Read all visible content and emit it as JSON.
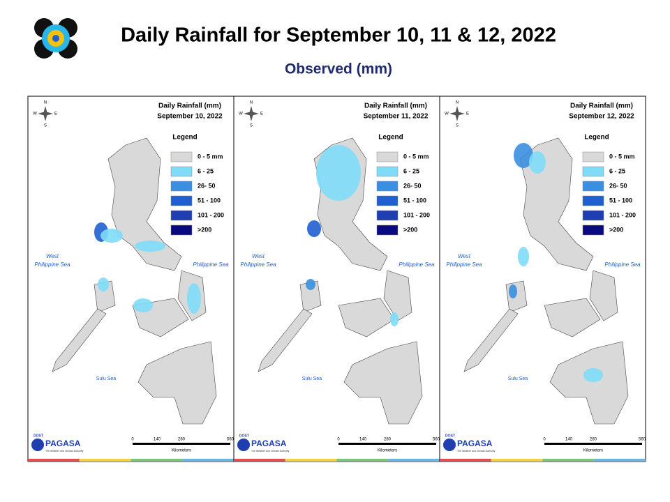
{
  "header": {
    "title": "Daily Rainfall for September 10, 11 & 12, 2022",
    "subtitle": "Observed (mm)"
  },
  "panels": [
    {
      "title": "Daily Rainfall (mm)",
      "date": "September 10, 2022"
    },
    {
      "title": "Daily Rainfall (mm)",
      "date": "September 11, 2022"
    },
    {
      "title": "Daily Rainfall (mm)",
      "date": "September 12, 2022"
    }
  ],
  "legend": {
    "title": "Legend",
    "items": [
      {
        "label": "0 - 5 mm",
        "color": "#d9d9d9"
      },
      {
        "label": "6 - 25",
        "color": "#7fdcf7"
      },
      {
        "label": "26- 50",
        "color": "#3a8fe0"
      },
      {
        "label": "51 - 100",
        "color": "#1f5fd0"
      },
      {
        "label": "101 - 200",
        "color": "#1f3fb0"
      },
      {
        "label": ">200",
        "color": "#0a0a80"
      }
    ]
  },
  "compass": {
    "n": "N",
    "s": "S",
    "e": "E",
    "w": "W"
  },
  "seas": {
    "west": [
      "West",
      "Philippine Sea"
    ],
    "east": "Philippine Sea",
    "sulu": "Sulu Sea"
  },
  "scale": {
    "ticks": [
      "0",
      "140",
      "280",
      "560"
    ],
    "unit": "Kilometers"
  },
  "logo": {
    "agency": "DOST",
    "name": "PAGASA",
    "tagline": "The Weather and Climate Authority"
  }
}
